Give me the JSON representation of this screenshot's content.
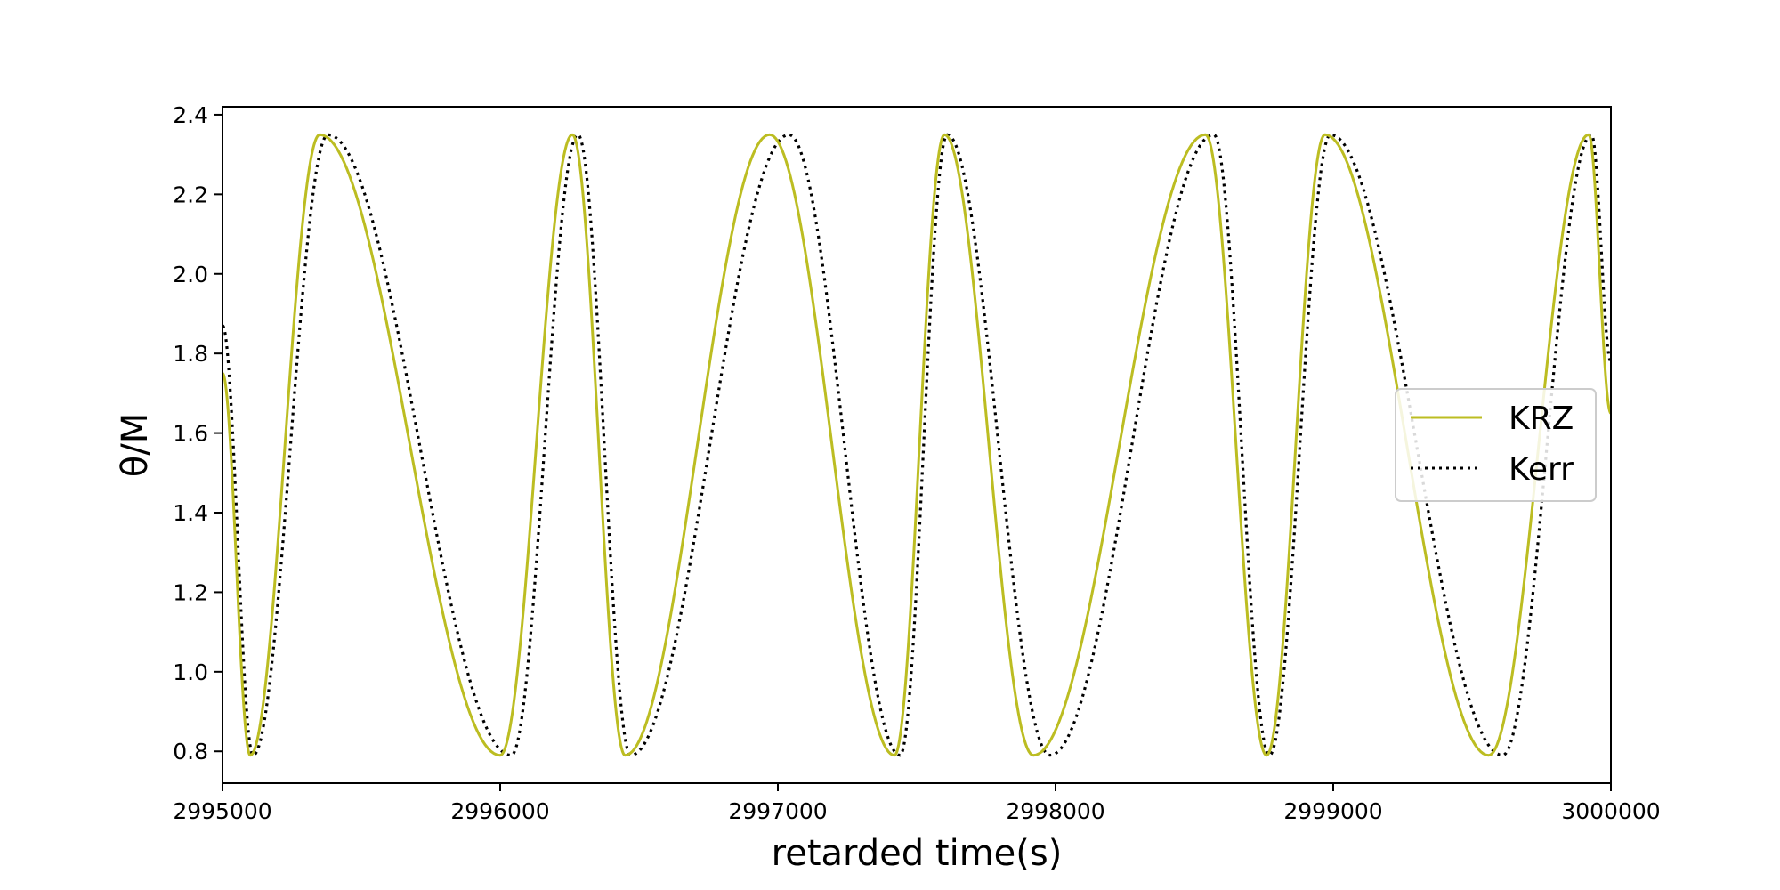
{
  "chart_data": {
    "type": "line",
    "title": "",
    "xlabel": "retarded time(s)",
    "ylabel": "θ/M",
    "xlim": [
      2995000,
      3000000
    ],
    "ylim": [
      0.72,
      2.42
    ],
    "x_ticks": [
      "2995000",
      "2996000",
      "2997000",
      "2998000",
      "2999000",
      "3000000"
    ],
    "y_ticks": [
      "0.8",
      "1.0",
      "1.2",
      "1.4",
      "1.6",
      "1.8",
      "2.0",
      "2.2",
      "2.4"
    ],
    "grid": false,
    "legend_position": "center-right",
    "series": [
      {
        "name": "KRZ",
        "style": "solid",
        "color": "#bcbd22",
        "start_value": 1.75,
        "end_value": 1.65,
        "minima": [
          2995100,
          2996000,
          2996450,
          2997420,
          2997920,
          2998760,
          2999560
        ],
        "maxima": [
          2995350,
          2996260,
          2996970,
          2997600,
          2998540,
          2998970,
          2999920
        ],
        "min_value": 0.79,
        "max_value": 2.35
      },
      {
        "name": "Kerr",
        "style": "dotted",
        "color": "#000000",
        "start_value": 1.87,
        "end_value": 1.78,
        "minima": [
          2995110,
          2996040,
          2996470,
          2997440,
          2997980,
          2998770,
          2999610
        ],
        "maxima": [
          2995380,
          2996280,
          2997040,
          2997610,
          2998570,
          2998990,
          2999930
        ],
        "min_value": 0.79,
        "max_value": 2.35
      }
    ]
  }
}
